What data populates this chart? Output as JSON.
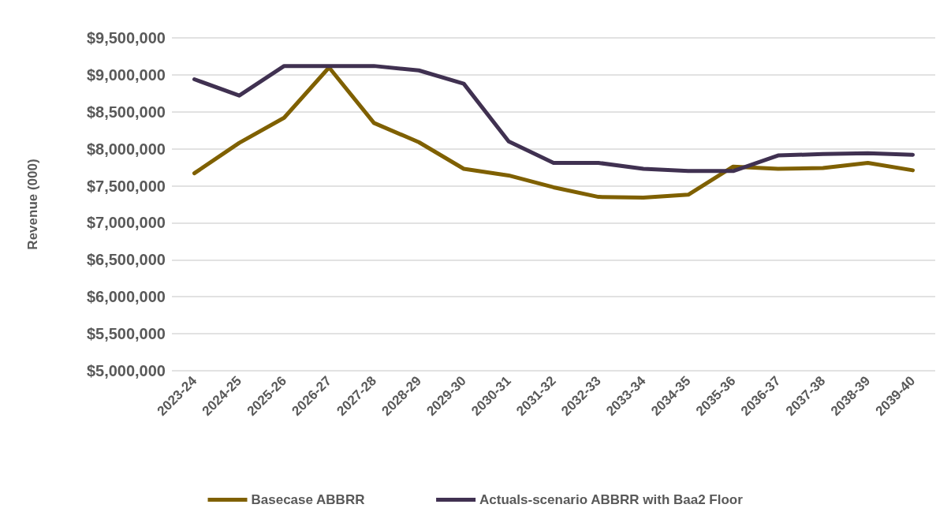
{
  "chart_data": {
    "type": "line",
    "ylabel": "Revenue (000)",
    "categories": [
      "2023-24",
      "2024-25",
      "2025-26",
      "2026-27",
      "2027-28",
      "2028-29",
      "2029-30",
      "2030-31",
      "2031-32",
      "2032-33",
      "2033-34",
      "2034-35",
      "2035-36",
      "2036-37",
      "2037-38",
      "2038-39",
      "2039-40"
    ],
    "series": [
      {
        "name": "Basecase ABBRR",
        "color": "#7f6000",
        "values": [
          7670000,
          8080000,
          8420000,
          9100000,
          8350000,
          8090000,
          7730000,
          7640000,
          7480000,
          7350000,
          7340000,
          7380000,
          7760000,
          7730000,
          7740000,
          7810000,
          7710000
        ]
      },
      {
        "name": "Actuals-scenario ABBRR with Baa2 Floor",
        "color": "#403151",
        "values": [
          8940000,
          8720000,
          9120000,
          9120000,
          9120000,
          9060000,
          8880000,
          8100000,
          7810000,
          7810000,
          7730000,
          7700000,
          7700000,
          7910000,
          7930000,
          7940000,
          7920000
        ]
      }
    ],
    "ylim": [
      5000000,
      9500000
    ],
    "yticks": [
      {
        "value": 5000000,
        "label": "$5,000,000"
      },
      {
        "value": 5500000,
        "label": "$5,500,000"
      },
      {
        "value": 6000000,
        "label": "$6,000,000"
      },
      {
        "value": 6500000,
        "label": "$6,500,000"
      },
      {
        "value": 7000000,
        "label": "$7,000,000"
      },
      {
        "value": 7500000,
        "label": "$7,500,000"
      },
      {
        "value": 8000000,
        "label": "$8,000,000"
      },
      {
        "value": 8500000,
        "label": "$8,500,000"
      },
      {
        "value": 9000000,
        "label": "$9,000,000"
      },
      {
        "value": 9500000,
        "label": "$9,500,000"
      }
    ],
    "grid": "y",
    "legend": "bottom",
    "marker": "none",
    "line_style": "solid"
  }
}
